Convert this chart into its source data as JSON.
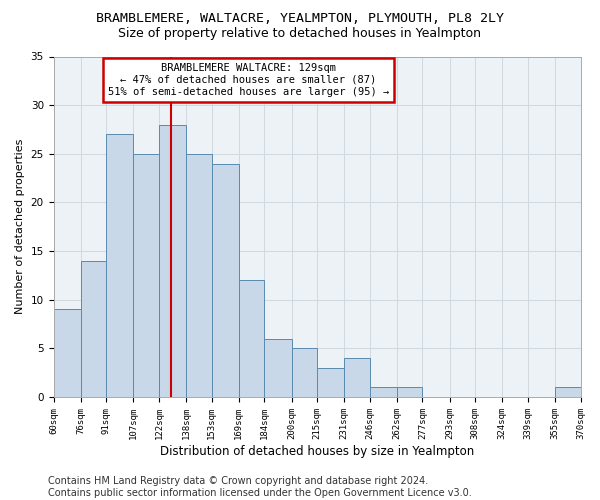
{
  "title": "BRAMBLEMERE, WALTACRE, YEALMPTON, PLYMOUTH, PL8 2LY",
  "subtitle": "Size of property relative to detached houses in Yealmpton",
  "xlabel": "Distribution of detached houses by size in Yealmpton",
  "ylabel": "Number of detached properties",
  "bar_color": "#c8d8e8",
  "bar_edge_color": "#5a8ab0",
  "grid_color": "#d0d8e0",
  "background_color": "#edf2f7",
  "vline_value": 129,
  "vline_color": "#cc0000",
  "annotation_line1": "BRAMBLEMERE WALTACRE: 129sqm",
  "annotation_line2": "← 47% of detached houses are smaller (87)",
  "annotation_line3": "51% of semi-detached houses are larger (95) →",
  "annotation_box_color": "#cc0000",
  "bins": [
    60,
    76,
    91,
    107,
    122,
    138,
    153,
    169,
    184,
    200,
    215,
    231,
    246,
    262,
    277,
    293,
    308,
    324,
    339,
    355,
    370
  ],
  "counts": [
    9,
    14,
    27,
    25,
    28,
    25,
    24,
    12,
    6,
    5,
    3,
    4,
    1,
    1,
    0,
    0,
    0,
    0,
    0,
    1
  ],
  "ylim": [
    0,
    35
  ],
  "yticks": [
    0,
    5,
    10,
    15,
    20,
    25,
    30,
    35
  ],
  "footer": "Contains HM Land Registry data © Crown copyright and database right 2024.\nContains public sector information licensed under the Open Government Licence v3.0.",
  "footer_fontsize": 7,
  "title_fontsize": 9.5,
  "subtitle_fontsize": 9,
  "xlabel_fontsize": 8.5,
  "ylabel_fontsize": 8,
  "tick_fontsize": 6.5,
  "ytick_fontsize": 7.5,
  "tick_labels": [
    "60sqm",
    "76sqm",
    "91sqm",
    "107sqm",
    "122sqm",
    "138sqm",
    "153sqm",
    "169sqm",
    "184sqm",
    "200sqm",
    "215sqm",
    "231sqm",
    "246sqm",
    "262sqm",
    "277sqm",
    "293sqm",
    "308sqm",
    "324sqm",
    "339sqm",
    "355sqm",
    "370sqm"
  ]
}
